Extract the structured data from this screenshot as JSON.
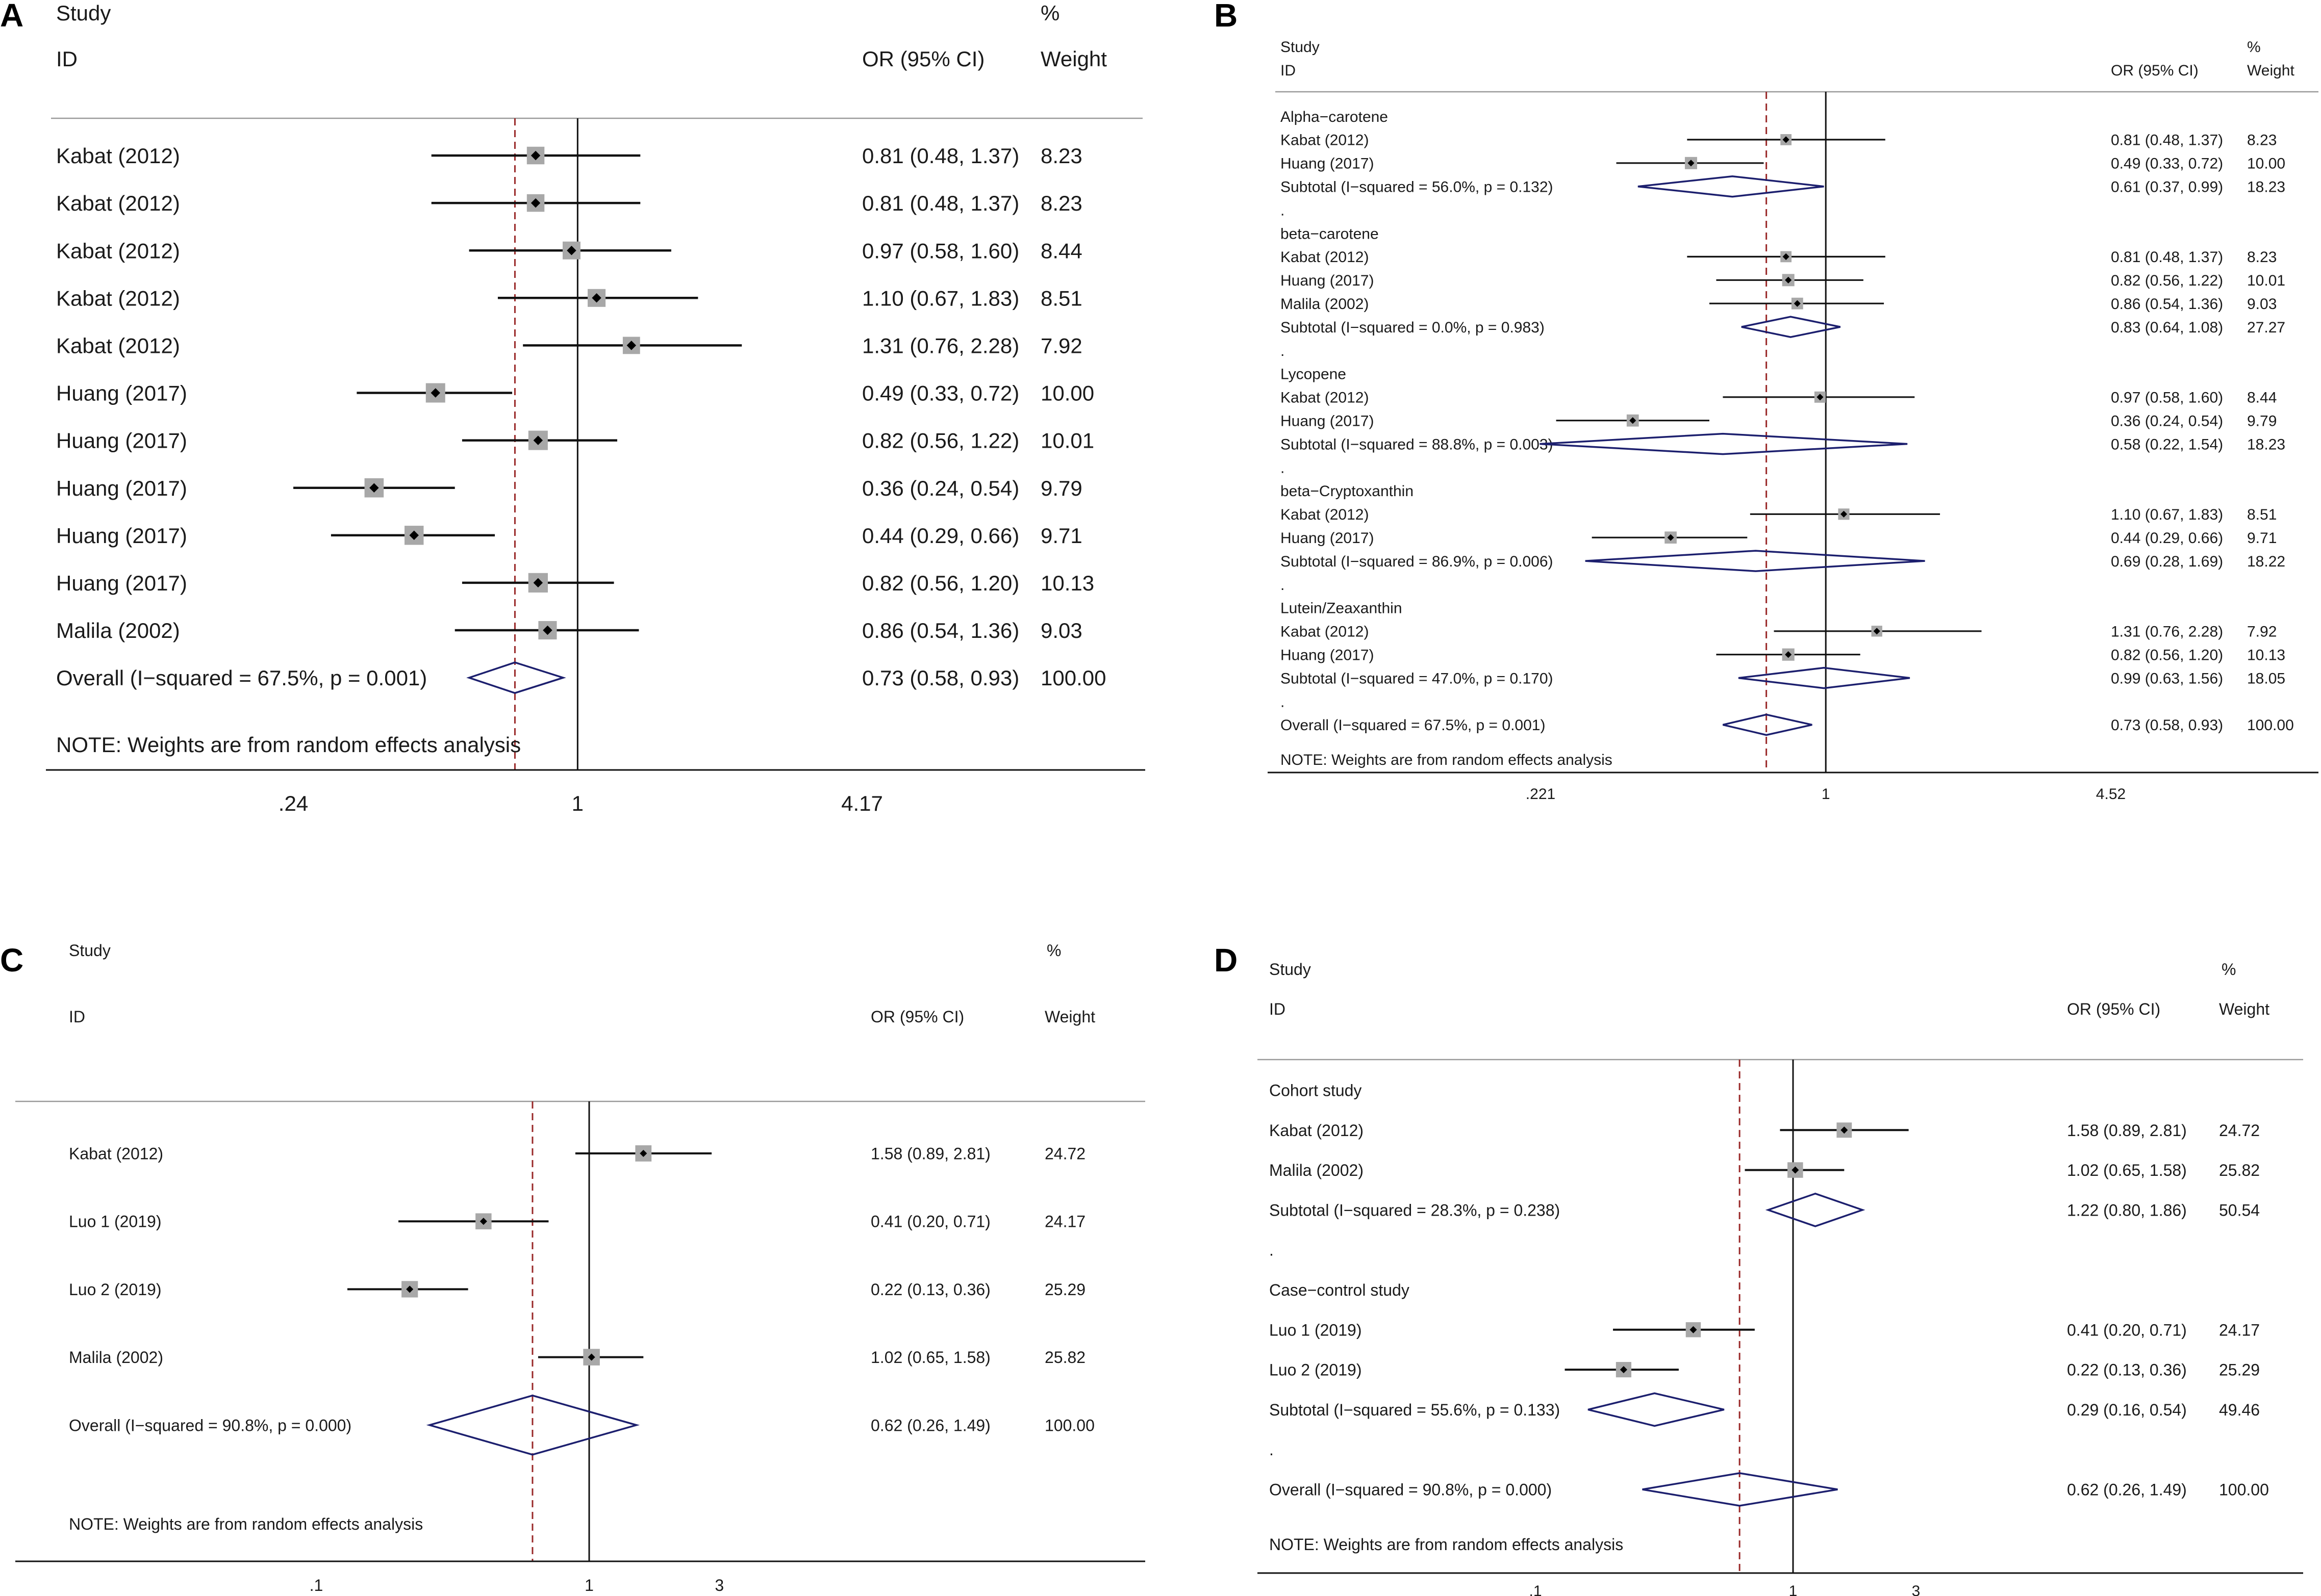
{
  "chart_data": [
    {
      "panel": "A",
      "type": "forest",
      "headers": {
        "study": "Study",
        "id": "ID",
        "effect": "OR (95% CI)",
        "weight_pct": "%",
        "weight": "Weight"
      },
      "scale": "log",
      "xlim": [
        0.24,
        4.17
      ],
      "xticks": [
        {
          "v": 0.24,
          "l": ".24"
        },
        {
          "v": 1,
          "l": "1"
        },
        {
          "v": 4.17,
          "l": "4.17"
        }
      ],
      "overall_estimate": 0.73,
      "note": "NOTE: Weights are from random effects analysis",
      "rows": [
        {
          "kind": "study",
          "label": "Kabat (2012)",
          "or": 0.81,
          "lo": 0.48,
          "hi": 1.37,
          "text": "0.81 (0.48, 1.37)",
          "weight": "8.23"
        },
        {
          "kind": "study",
          "label": "Kabat (2012)",
          "or": 0.81,
          "lo": 0.48,
          "hi": 1.37,
          "text": "0.81 (0.48, 1.37)",
          "weight": "8.23"
        },
        {
          "kind": "study",
          "label": "Kabat (2012)",
          "or": 0.97,
          "lo": 0.58,
          "hi": 1.6,
          "text": "0.97 (0.58, 1.60)",
          "weight": "8.44"
        },
        {
          "kind": "study",
          "label": "Kabat (2012)",
          "or": 1.1,
          "lo": 0.67,
          "hi": 1.83,
          "text": "1.10 (0.67, 1.83)",
          "weight": "8.51"
        },
        {
          "kind": "study",
          "label": "Kabat (2012)",
          "or": 1.31,
          "lo": 0.76,
          "hi": 2.28,
          "text": "1.31 (0.76, 2.28)",
          "weight": "7.92"
        },
        {
          "kind": "study",
          "label": "Huang (2017)",
          "or": 0.49,
          "lo": 0.33,
          "hi": 0.72,
          "text": "0.49 (0.33, 0.72)",
          "weight": "10.00"
        },
        {
          "kind": "study",
          "label": "Huang (2017)",
          "or": 0.82,
          "lo": 0.56,
          "hi": 1.22,
          "text": "0.82 (0.56, 1.22)",
          "weight": "10.01"
        },
        {
          "kind": "study",
          "label": "Huang (2017)",
          "or": 0.36,
          "lo": 0.24,
          "hi": 0.54,
          "text": "0.36 (0.24, 0.54)",
          "weight": "9.79"
        },
        {
          "kind": "study",
          "label": "Huang (2017)",
          "or": 0.44,
          "lo": 0.29,
          "hi": 0.66,
          "text": "0.44 (0.29, 0.66)",
          "weight": "9.71"
        },
        {
          "kind": "study",
          "label": "Huang (2017)",
          "or": 0.82,
          "lo": 0.56,
          "hi": 1.2,
          "text": "0.82 (0.56, 1.20)",
          "weight": "10.13"
        },
        {
          "kind": "study",
          "label": "Malila (2002)",
          "or": 0.86,
          "lo": 0.54,
          "hi": 1.36,
          "text": "0.86 (0.54, 1.36)",
          "weight": "9.03"
        },
        {
          "kind": "overall",
          "label": "Overall  (I−squared = 67.5%, p = 0.001)",
          "or": 0.73,
          "lo": 0.58,
          "hi": 0.93,
          "text": "0.73 (0.58, 0.93)",
          "weight": "100.00"
        }
      ]
    },
    {
      "panel": "B",
      "type": "forest",
      "headers": {
        "study": "Study",
        "id": "ID",
        "effect": "OR (95% CI)",
        "weight_pct": "%",
        "weight": "Weight"
      },
      "scale": "log",
      "xlim": [
        0.221,
        4.52
      ],
      "xticks": [
        {
          "v": 0.221,
          "l": ".221"
        },
        {
          "v": 1,
          "l": "1"
        },
        {
          "v": 4.52,
          "l": "4.52"
        }
      ],
      "overall_estimate": 0.73,
      "note": "NOTE: Weights are from random effects analysis",
      "rows": [
        {
          "kind": "group",
          "label": "Alpha−carotene"
        },
        {
          "kind": "study",
          "label": "Kabat (2012)",
          "or": 0.81,
          "lo": 0.48,
          "hi": 1.37,
          "text": "0.81 (0.48, 1.37)",
          "weight": "8.23"
        },
        {
          "kind": "study",
          "label": "Huang (2017)",
          "or": 0.49,
          "lo": 0.33,
          "hi": 0.72,
          "text": "0.49 (0.33, 0.72)",
          "weight": "10.00"
        },
        {
          "kind": "subtotal",
          "label": "Subtotal  (I−squared = 56.0%, p = 0.132)",
          "or": 0.61,
          "lo": 0.37,
          "hi": 0.99,
          "text": "0.61 (0.37, 0.99)",
          "weight": "18.23"
        },
        {
          "kind": "dot",
          "label": "."
        },
        {
          "kind": "group",
          "label": "beta−carotene"
        },
        {
          "kind": "study",
          "label": "Kabat (2012)",
          "or": 0.81,
          "lo": 0.48,
          "hi": 1.37,
          "text": "0.81 (0.48, 1.37)",
          "weight": "8.23"
        },
        {
          "kind": "study",
          "label": "Huang (2017)",
          "or": 0.82,
          "lo": 0.56,
          "hi": 1.22,
          "text": "0.82 (0.56, 1.22)",
          "weight": "10.01"
        },
        {
          "kind": "study",
          "label": "Malila (2002)",
          "or": 0.86,
          "lo": 0.54,
          "hi": 1.36,
          "text": "0.86 (0.54, 1.36)",
          "weight": "9.03"
        },
        {
          "kind": "subtotal",
          "label": "Subtotal  (I−squared = 0.0%, p = 0.983)",
          "or": 0.83,
          "lo": 0.64,
          "hi": 1.08,
          "text": "0.83 (0.64, 1.08)",
          "weight": "27.27"
        },
        {
          "kind": "dot",
          "label": "."
        },
        {
          "kind": "group",
          "label": "Lycopene"
        },
        {
          "kind": "study",
          "label": "Kabat (2012)",
          "or": 0.97,
          "lo": 0.58,
          "hi": 1.6,
          "text": "0.97 (0.58, 1.60)",
          "weight": "8.44"
        },
        {
          "kind": "study",
          "label": "Huang (2017)",
          "or": 0.36,
          "lo": 0.24,
          "hi": 0.54,
          "text": "0.36 (0.24, 0.54)",
          "weight": "9.79"
        },
        {
          "kind": "subtotal",
          "label": "Subtotal  (I−squared = 88.8%, p = 0.003)",
          "or": 0.58,
          "lo": 0.22,
          "hi": 1.54,
          "text": "0.58 (0.22, 1.54)",
          "weight": "18.23"
        },
        {
          "kind": "dot",
          "label": "."
        },
        {
          "kind": "group",
          "label": "beta−Cryptoxanthin"
        },
        {
          "kind": "study",
          "label": "Kabat (2012)",
          "or": 1.1,
          "lo": 0.67,
          "hi": 1.83,
          "text": "1.10 (0.67, 1.83)",
          "weight": "8.51"
        },
        {
          "kind": "study",
          "label": "Huang (2017)",
          "or": 0.44,
          "lo": 0.29,
          "hi": 0.66,
          "text": "0.44 (0.29, 0.66)",
          "weight": "9.71"
        },
        {
          "kind": "subtotal",
          "label": "Subtotal  (I−squared = 86.9%, p = 0.006)",
          "or": 0.69,
          "lo": 0.28,
          "hi": 1.69,
          "text": "0.69 (0.28, 1.69)",
          "weight": "18.22"
        },
        {
          "kind": "dot",
          "label": "."
        },
        {
          "kind": "group",
          "label": "Lutein/Zeaxanthin"
        },
        {
          "kind": "study",
          "label": "Kabat (2012)",
          "or": 1.31,
          "lo": 0.76,
          "hi": 2.28,
          "text": "1.31 (0.76, 2.28)",
          "weight": "7.92"
        },
        {
          "kind": "study",
          "label": "Huang (2017)",
          "or": 0.82,
          "lo": 0.56,
          "hi": 1.2,
          "text": "0.82 (0.56, 1.20)",
          "weight": "10.13"
        },
        {
          "kind": "subtotal",
          "label": "Subtotal  (I−squared = 47.0%, p = 0.170)",
          "or": 0.99,
          "lo": 0.63,
          "hi": 1.56,
          "text": "0.99 (0.63, 1.56)",
          "weight": "18.05"
        },
        {
          "kind": "dot",
          "label": "."
        },
        {
          "kind": "overall",
          "label": "Overall  (I−squared = 67.5%, p = 0.001)",
          "or": 0.73,
          "lo": 0.58,
          "hi": 0.93,
          "text": "0.73 (0.58, 0.93)",
          "weight": "100.00"
        }
      ]
    },
    {
      "panel": "C",
      "type": "forest",
      "headers": {
        "study": "Study",
        "id": "ID",
        "effect": "OR (95% CI)",
        "weight_pct": "%",
        "weight": "Weight"
      },
      "scale": "log",
      "xlim": [
        0.1,
        10
      ],
      "xticks": [
        {
          "v": 0.1,
          "l": ".1"
        },
        {
          "v": 1,
          "l": "1"
        },
        {
          "v": 3,
          "l": "3"
        }
      ],
      "overall_estimate": 0.62,
      "note": "NOTE: Weights are from random effects analysis",
      "rows": [
        {
          "kind": "study",
          "label": "Kabat (2012)",
          "or": 1.58,
          "lo": 0.89,
          "hi": 2.81,
          "text": "1.58 (0.89, 2.81)",
          "weight": "24.72"
        },
        {
          "kind": "study",
          "label": "Luo 1 (2019)",
          "or": 0.41,
          "lo": 0.2,
          "hi": 0.71,
          "text": "0.41 (0.20, 0.71)",
          "weight": "24.17"
        },
        {
          "kind": "study",
          "label": "Luo 2 (2019)",
          "or": 0.22,
          "lo": 0.13,
          "hi": 0.36,
          "text": "0.22 (0.13, 0.36)",
          "weight": "25.29"
        },
        {
          "kind": "study",
          "label": "Malila (2002)",
          "or": 1.02,
          "lo": 0.65,
          "hi": 1.58,
          "text": "1.02 (0.65, 1.58)",
          "weight": "25.82"
        },
        {
          "kind": "overall",
          "label": "Overall  (I−squared = 90.8%, p = 0.000)",
          "or": 0.62,
          "lo": 0.26,
          "hi": 1.49,
          "text": "0.62 (0.26, 1.49)",
          "weight": "100.00"
        }
      ]
    },
    {
      "panel": "D",
      "type": "forest",
      "headers": {
        "study": "Study",
        "id": "ID",
        "effect": "OR (95% CI)",
        "weight_pct": "%",
        "weight": "Weight"
      },
      "scale": "log",
      "xlim": [
        0.1,
        10
      ],
      "xticks": [
        {
          "v": 0.1,
          "l": ".1"
        },
        {
          "v": 1,
          "l": "1"
        },
        {
          "v": 3,
          "l": "3"
        }
      ],
      "overall_estimate": 0.62,
      "note": "NOTE: Weights are from random effects analysis",
      "rows": [
        {
          "kind": "group",
          "label": "Cohort study"
        },
        {
          "kind": "study",
          "label": "Kabat (2012)",
          "or": 1.58,
          "lo": 0.89,
          "hi": 2.81,
          "text": "1.58 (0.89, 2.81)",
          "weight": "24.72"
        },
        {
          "kind": "study",
          "label": "Malila (2002)",
          "or": 1.02,
          "lo": 0.65,
          "hi": 1.58,
          "text": "1.02 (0.65, 1.58)",
          "weight": "25.82"
        },
        {
          "kind": "subtotal",
          "label": "Subtotal  (I−squared = 28.3%, p = 0.238)",
          "or": 1.22,
          "lo": 0.8,
          "hi": 1.86,
          "text": "1.22 (0.80, 1.86)",
          "weight": "50.54"
        },
        {
          "kind": "dot",
          "label": "."
        },
        {
          "kind": "group",
          "label": "Case−control study"
        },
        {
          "kind": "study",
          "label": "Luo 1 (2019)",
          "or": 0.41,
          "lo": 0.2,
          "hi": 0.71,
          "text": "0.41 (0.20, 0.71)",
          "weight": "24.17"
        },
        {
          "kind": "study",
          "label": "Luo 2 (2019)",
          "or": 0.22,
          "lo": 0.13,
          "hi": 0.36,
          "text": "0.22 (0.13, 0.36)",
          "weight": "25.29"
        },
        {
          "kind": "subtotal",
          "label": "Subtotal  (I−squared = 55.6%, p = 0.133)",
          "or": 0.29,
          "lo": 0.16,
          "hi": 0.54,
          "text": "0.29 (0.16, 0.54)",
          "weight": "49.46"
        },
        {
          "kind": "dot",
          "label": "."
        },
        {
          "kind": "overall",
          "label": "Overall  (I−squared = 90.8%, p = 0.000)",
          "or": 0.62,
          "lo": 0.26,
          "hi": 1.49,
          "text": "0.62 (0.26, 1.49)",
          "weight": "100.00"
        }
      ]
    }
  ],
  "colors": {
    "ink": "#1a1a1a",
    "box": "#a8a8a8",
    "diamond": "#1c1f6e",
    "refline": "#9a2a2a",
    "rule": "#9a9a9a"
  }
}
